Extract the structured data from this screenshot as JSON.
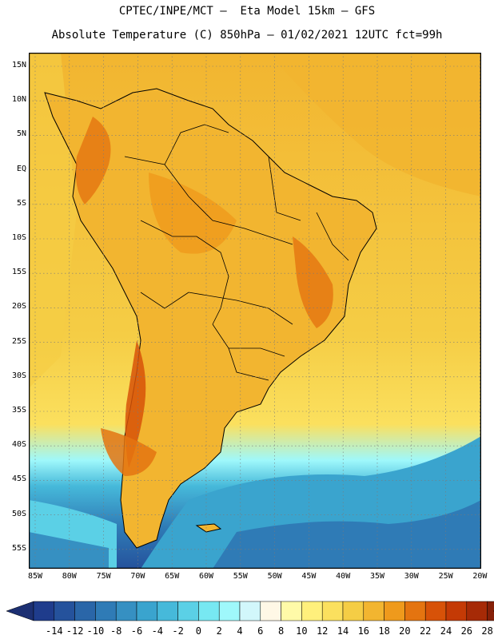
{
  "header": {
    "line1": "CPTEC/INPE/MCT —  Eta Model 15km — GFS",
    "line2": "Absolute Temperature (C) 850hPa — 01/02/2021 12UTC fct=99h"
  },
  "axes": {
    "lat_ticks": [
      "15N",
      "10N",
      "5N",
      "EQ",
      "5S",
      "10S",
      "15S",
      "20S",
      "25S",
      "30S",
      "35S",
      "40S",
      "45S",
      "50S",
      "55S"
    ],
    "lon_ticks": [
      "85W",
      "80W",
      "75W",
      "70W",
      "65W",
      "60W",
      "55W",
      "50W",
      "45W",
      "40W",
      "35W",
      "30W",
      "25W",
      "20W"
    ],
    "grid": "dotted"
  },
  "colorbar": {
    "labels": [
      "-14",
      "-12",
      "-10",
      "-8",
      "-6",
      "-4",
      "-2",
      "0",
      "2",
      "4",
      "6",
      "8",
      "10",
      "12",
      "14",
      "16",
      "18",
      "20",
      "22",
      "24",
      "26",
      "28"
    ],
    "colors": [
      "#1f3c8c",
      "#25529c",
      "#2a66a8",
      "#2f7bb6",
      "#3690c2",
      "#3aa4ce",
      "#46b9da",
      "#5bd0e6",
      "#77e8f2",
      "#9ff8fb",
      "#d2f7fb",
      "#fff8e6",
      "#fffaa8",
      "#fff07c",
      "#fbe05e",
      "#f5cd45",
      "#f2b530",
      "#ef9a1c",
      "#e47410",
      "#d75208",
      "#c43a05",
      "#a62a06",
      "#862008",
      "#600812"
    ],
    "underflow_color": "#1c2f72",
    "overflow_color": "#600812"
  }
}
